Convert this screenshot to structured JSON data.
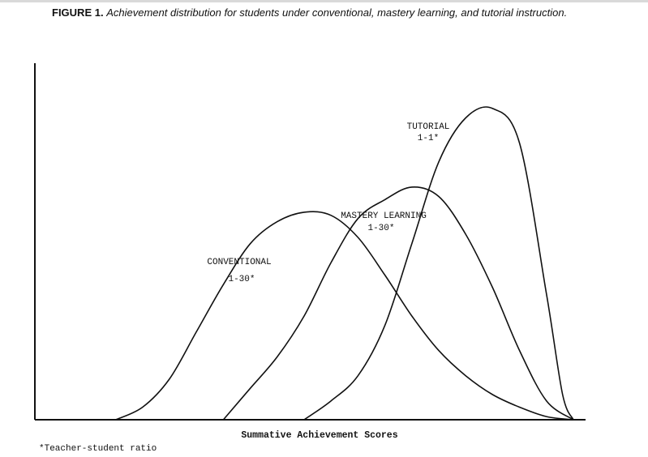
{
  "caption": {
    "label": "FIGURE 1.",
    "text": "Achievement distribution for students under conventional, mastery learning, and tutorial instruction."
  },
  "footnote": "*Teacher-student ratio",
  "chart_data": {
    "type": "line",
    "title": "Achievement distribution for students under conventional, mastery learning, and tutorial instruction.",
    "xlabel": "Summative Achievement Scores",
    "ylabel": "",
    "xlim": [
      0,
      100
    ],
    "ylim": [
      0,
      100
    ],
    "grid": false,
    "legend": "none",
    "series": [
      {
        "name": "CONVENTIONAL",
        "ratio": "1-30*",
        "color": "#111111",
        "x": [
          0,
          15,
          20,
          25,
          30,
          35,
          40,
          45,
          50,
          55,
          60,
          65,
          70,
          75,
          80,
          85,
          90,
          95,
          100
        ],
        "y": [
          0,
          0,
          4,
          13,
          28,
          43,
          56,
          63,
          66,
          65,
          58,
          46,
          33,
          22,
          14,
          8,
          4,
          1,
          0
        ]
      },
      {
        "name": "MASTERY LEARNING",
        "ratio": "1-30*",
        "color": "#111111",
        "x": [
          0,
          35,
          40,
          45,
          50,
          55,
          60,
          65,
          70,
          75,
          80,
          85,
          90,
          95,
          100
        ],
        "y": [
          0,
          0,
          10,
          20,
          33,
          50,
          64,
          70,
          74,
          71,
          59,
          42,
          22,
          6,
          0
        ]
      },
      {
        "name": "TUTORIAL",
        "ratio": "1-1*",
        "color": "#111111",
        "x": [
          0,
          50,
          55,
          60,
          65,
          70,
          75,
          80,
          85,
          90,
          95,
          98,
          100
        ],
        "y": [
          0,
          0,
          6,
          14,
          30,
          56,
          82,
          96,
          99,
          88,
          40,
          8,
          0
        ]
      }
    ],
    "labels": {
      "conventional": {
        "name": "CONVENTIONAL",
        "ratio": "1-30*"
      },
      "mastery": {
        "name": "MASTERY LEARNING",
        "ratio": "1-30*"
      },
      "tutorial": {
        "name": "TUTORIAL",
        "ratio": "1-1*"
      }
    }
  }
}
